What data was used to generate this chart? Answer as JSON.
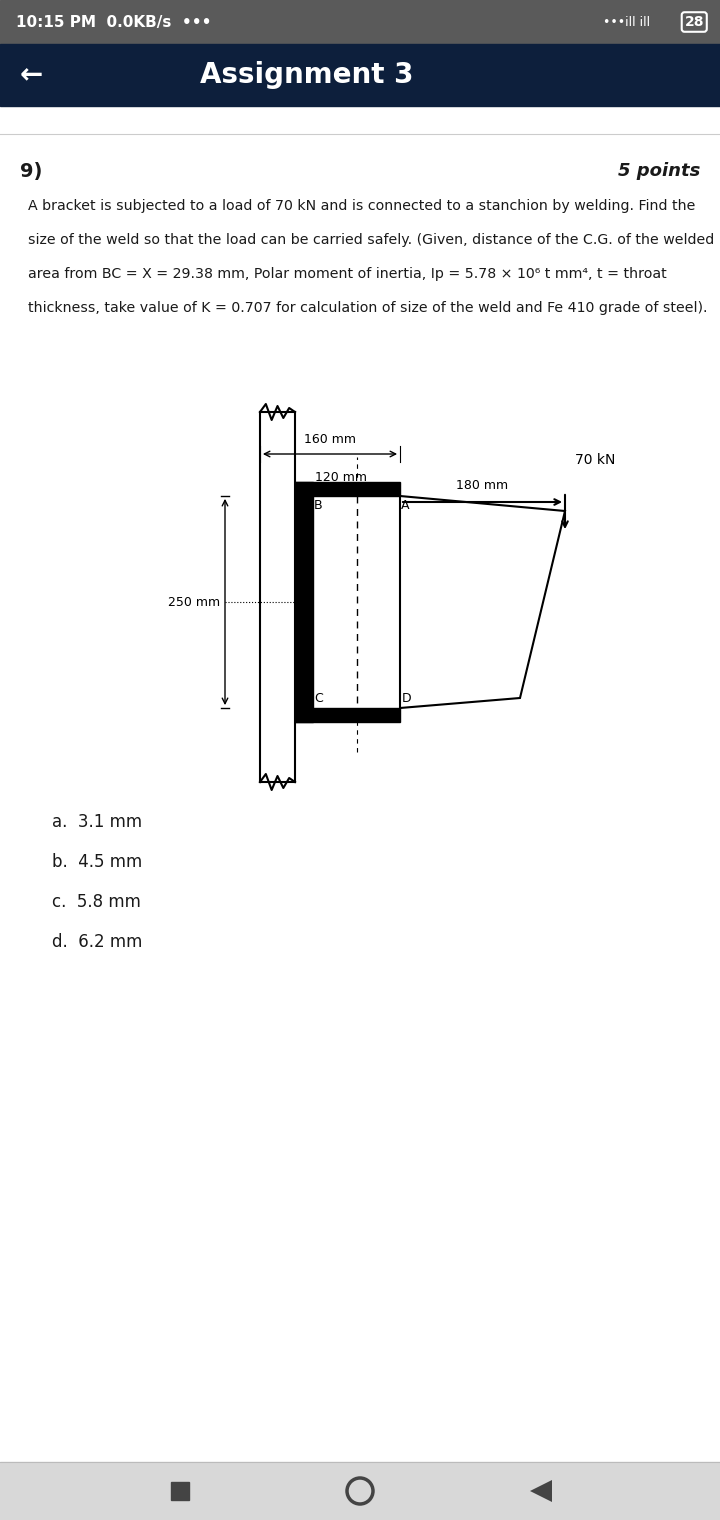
{
  "status_bar_text": "10:15 PM  0.0KB/s  •••",
  "status_bar_bg": "#5a5a5a",
  "header_bg": "#0d1f3c",
  "header_text": "Assignment 3",
  "arrow_back": "←",
  "question_num": "9)",
  "points_text": "5 points",
  "body_lines": [
    "A bracket is subjected to a load of 70 kN and is connected to a stanchion by welding. Find the",
    "size of the weld so that the load can be carried safely. (Given, distance of the C.G. of the welded",
    "area from BC = X = 29.38 mm, Polar moment of inertia, Ip = 5.78 × 10⁶ t mm⁴, t = throat",
    "thickness, take value of K = 0.707 for calculation of size of the weld and Fe 410 grade of steel)."
  ],
  "dim_160": "160 mm",
  "dim_120": "120 mm",
  "dim_180": "180 mm",
  "dim_250": "250 mm",
  "load_text": "70 kN",
  "label_B": "B",
  "label_A": "A",
  "label_C": "C",
  "label_D": "D",
  "options": [
    "a.  3.1 mm",
    "b.  4.5 mm",
    "c.  5.8 mm",
    "d.  6.2 mm"
  ],
  "bg_white": "#ffffff",
  "text_dark": "#1a1a1a",
  "sep_color": "#cccccc",
  "nav_bg": "#d8d8d8"
}
